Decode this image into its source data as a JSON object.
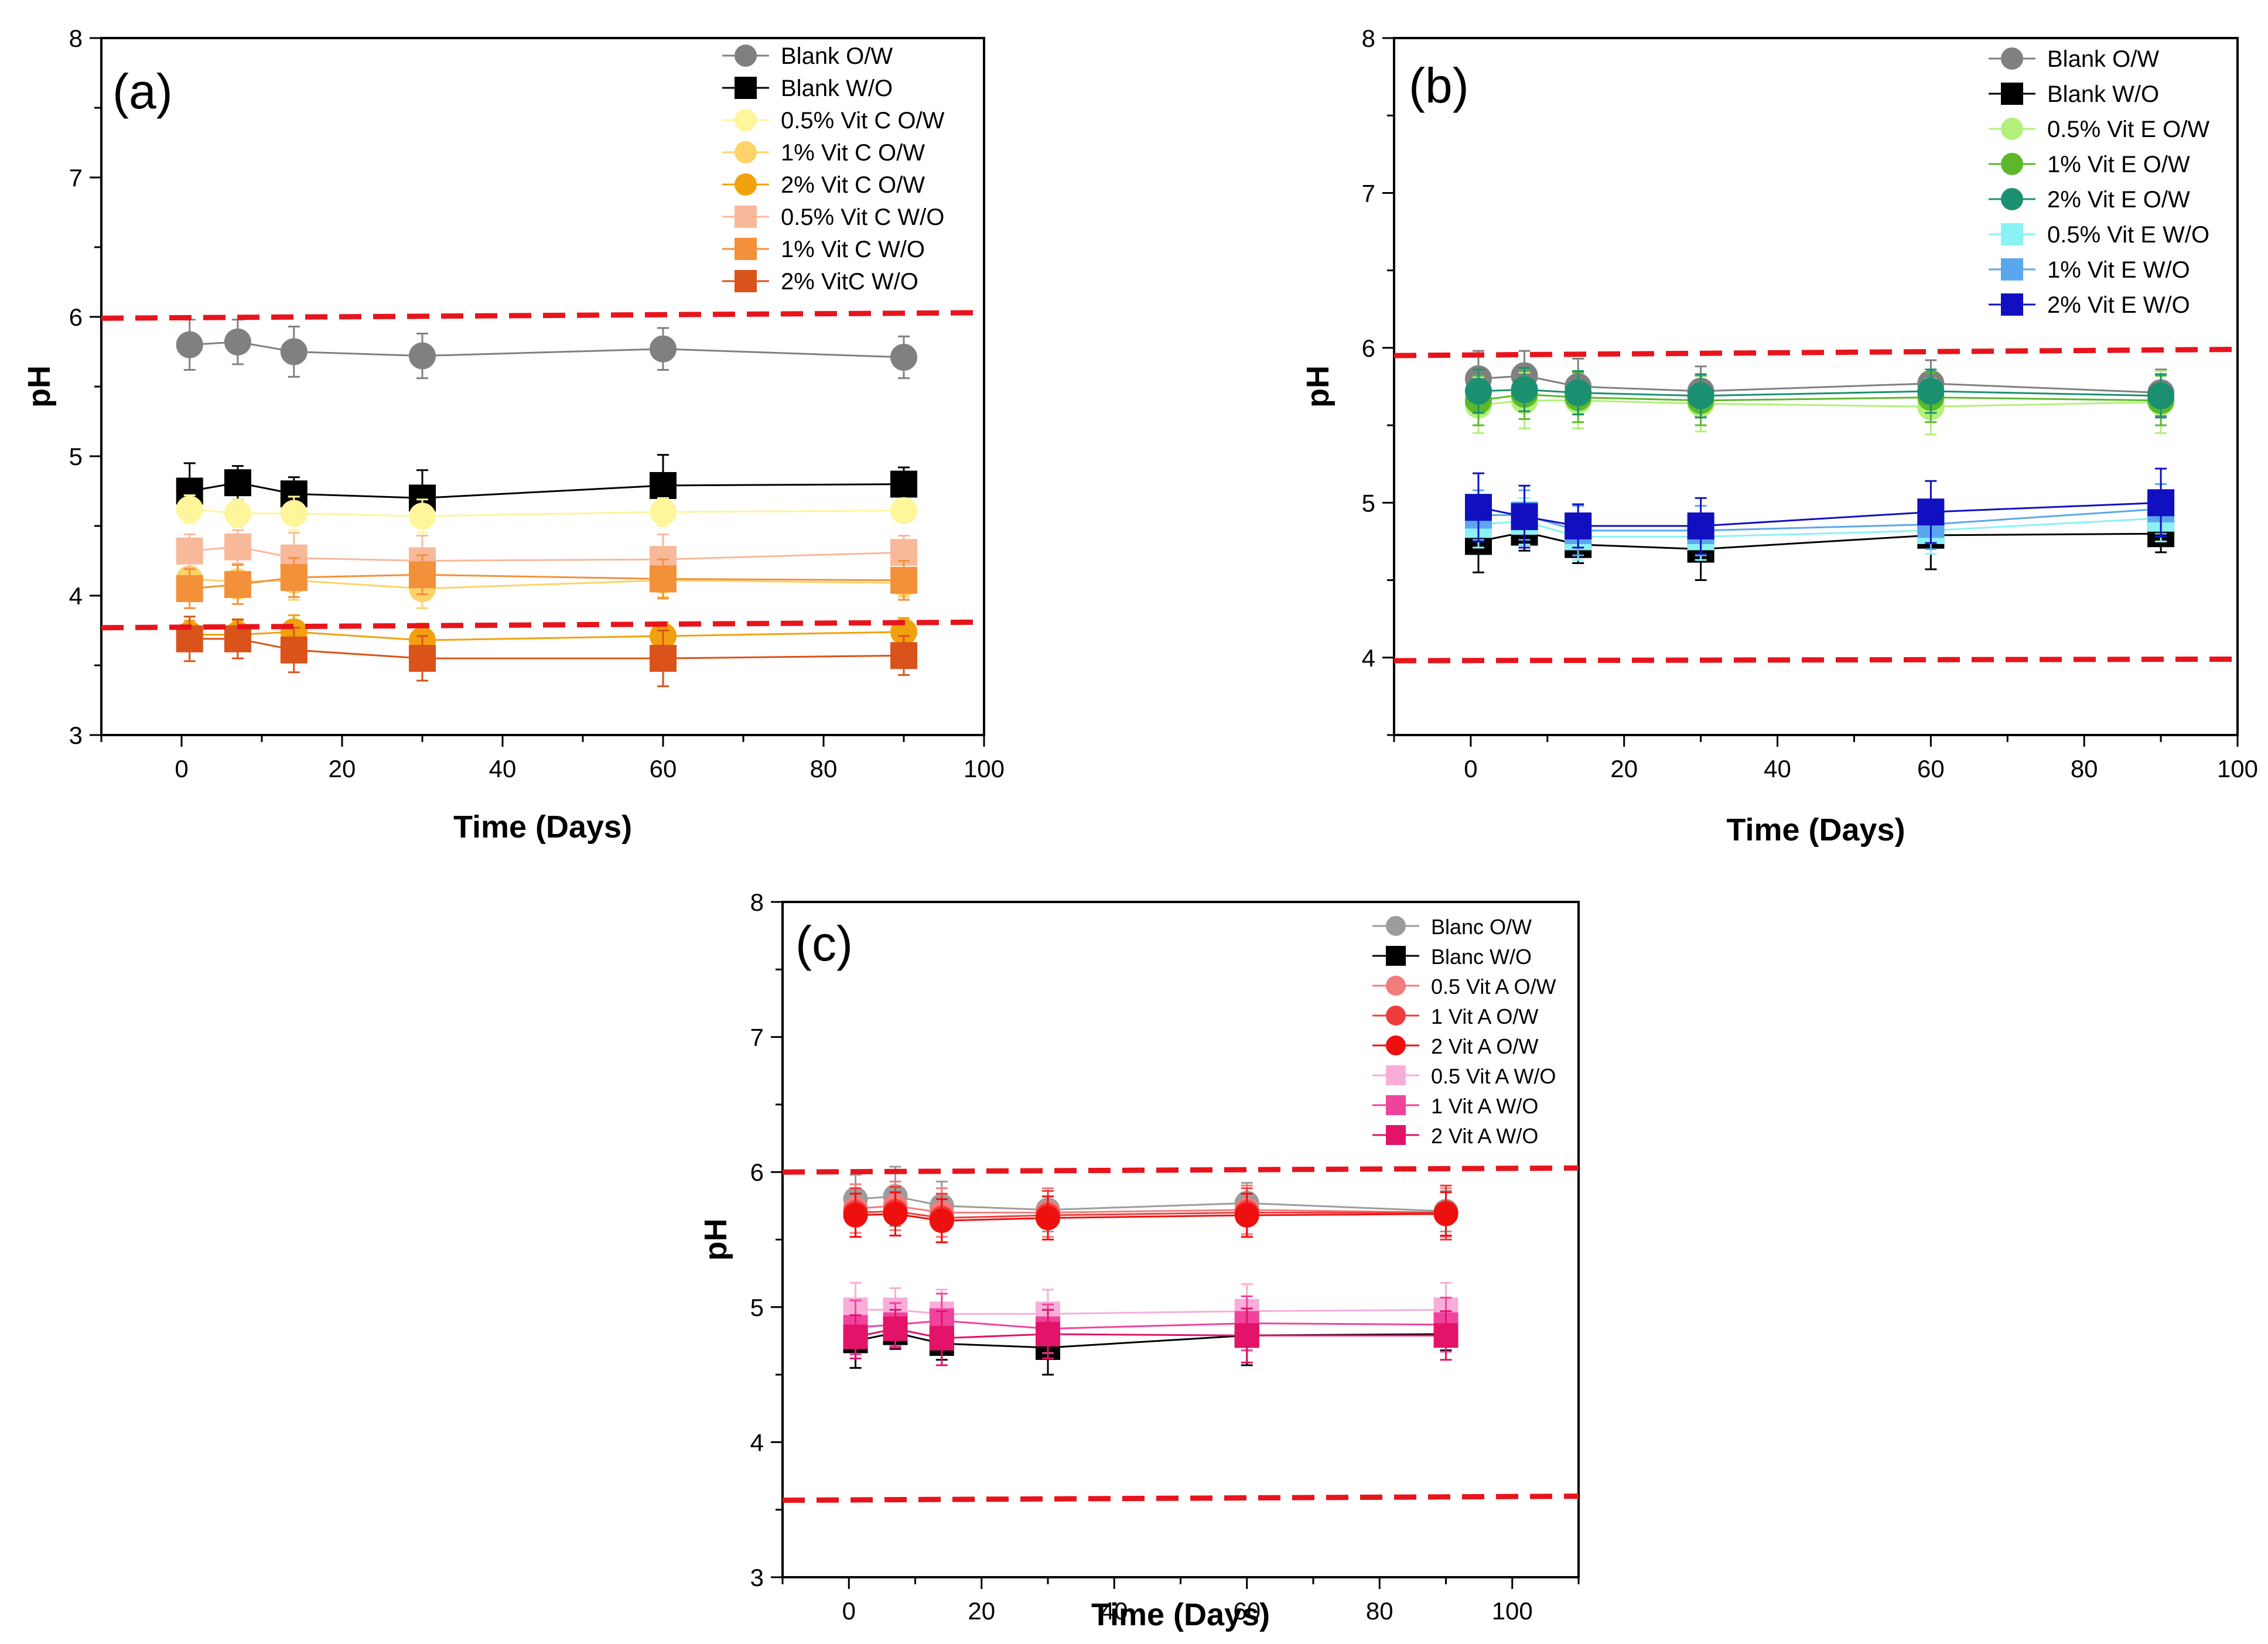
{
  "chart_data": [
    {
      "type": "line",
      "panel_label": "(a)",
      "xlabel": "Time (Days)",
      "ylabel": "pH",
      "xlim": [
        -10,
        100
      ],
      "ylim": [
        3,
        8
      ],
      "xticks": [
        "0",
        "20",
        "40",
        "60",
        "80",
        "100"
      ],
      "yticks": [
        "3",
        "4",
        "5",
        "6",
        "7",
        "8"
      ],
      "x": [
        1,
        7,
        14,
        30,
        60,
        90
      ],
      "limit_lines": [
        {
          "name": "upper-limit",
          "y_start": 5.99,
          "y_end": 6.03,
          "color": "#e8141c"
        },
        {
          "name": "lower-limit",
          "y_start": 3.77,
          "y_end": 3.81,
          "color": "#e8141c"
        }
      ],
      "series": [
        {
          "name": "Blank O/W",
          "marker": "circle",
          "color": "#808080",
          "values": [
            5.8,
            5.82,
            5.75,
            5.72,
            5.77,
            5.71
          ],
          "errors": [
            0.18,
            0.16,
            0.18,
            0.16,
            0.15,
            0.15
          ]
        },
        {
          "name": "Blank W/O",
          "marker": "square",
          "color": "#000000",
          "values": [
            4.75,
            4.81,
            4.73,
            4.7,
            4.79,
            4.8
          ],
          "errors": [
            0.2,
            0.12,
            0.12,
            0.2,
            0.22,
            0.12
          ]
        },
        {
          "name": "0.5% Vit C O/W",
          "marker": "circle",
          "color": "#fff59a",
          "values": [
            4.62,
            4.59,
            4.59,
            4.57,
            4.6,
            4.61
          ],
          "errors": [
            0.1,
            0.1,
            0.12,
            0.12,
            0.1,
            0.08
          ]
        },
        {
          "name": "1% Vit C O/W",
          "marker": "circle",
          "color": "#fdd36a",
          "values": [
            4.12,
            4.1,
            4.11,
            4.05,
            4.11,
            4.09
          ],
          "errors": [
            0.12,
            0.12,
            0.14,
            0.14,
            0.12,
            0.1
          ]
        },
        {
          "name": "2% Vit C O/W",
          "marker": "circle",
          "color": "#f2a10e",
          "values": [
            3.72,
            3.72,
            3.74,
            3.68,
            3.71,
            3.74
          ],
          "errors": [
            0.1,
            0.1,
            0.12,
            0.12,
            0.1,
            0.1
          ]
        },
        {
          "name": "0.5% Vit C W/O",
          "marker": "square",
          "color": "#f8b99a",
          "values": [
            4.32,
            4.35,
            4.27,
            4.25,
            4.26,
            4.31
          ],
          "errors": [
            0.12,
            0.12,
            0.18,
            0.18,
            0.18,
            0.12
          ]
        },
        {
          "name": "1% Vit C W/O",
          "marker": "square",
          "color": "#f3913a",
          "values": [
            4.05,
            4.08,
            4.13,
            4.15,
            4.12,
            4.11
          ],
          "errors": [
            0.14,
            0.14,
            0.14,
            0.14,
            0.14,
            0.14
          ]
        },
        {
          "name": "2% VitC W/O",
          "marker": "square",
          "color": "#d9531a",
          "values": [
            3.69,
            3.69,
            3.61,
            3.55,
            3.55,
            3.57
          ],
          "errors": [
            0.16,
            0.14,
            0.16,
            0.16,
            0.2,
            0.14
          ]
        }
      ]
    },
    {
      "type": "line",
      "panel_label": "(b)",
      "xlabel": "Time (Days)",
      "ylabel": "pH",
      "xlim": [
        -10,
        100
      ],
      "ylim": [
        3.5,
        8
      ],
      "xticks": [
        "0",
        "20",
        "40",
        "60",
        "80",
        "100"
      ],
      "yticks": [
        "4",
        "5",
        "6",
        "7",
        "8"
      ],
      "x": [
        1,
        7,
        14,
        30,
        60,
        90
      ],
      "limit_lines": [
        {
          "name": "upper-limit",
          "y_start": 5.95,
          "y_end": 5.99,
          "color": "#e8141c"
        },
        {
          "name": "lower-limit",
          "y_start": 3.98,
          "y_end": 3.99,
          "color": "#e8141c"
        }
      ],
      "series": [
        {
          "name": "Blank O/W",
          "marker": "circle",
          "color": "#808080",
          "values": [
            5.8,
            5.82,
            5.75,
            5.72,
            5.77,
            5.71
          ],
          "errors": [
            0.18,
            0.16,
            0.18,
            0.16,
            0.15,
            0.15
          ]
        },
        {
          "name": "Blank W/O",
          "marker": "square",
          "color": "#000000",
          "values": [
            4.75,
            4.81,
            4.73,
            4.7,
            4.79,
            4.8
          ],
          "errors": [
            0.2,
            0.12,
            0.12,
            0.2,
            0.22,
            0.12
          ]
        },
        {
          "name": "0.5% Vit E O/W",
          "marker": "circle",
          "color": "#b2f07a",
          "values": [
            5.63,
            5.66,
            5.66,
            5.64,
            5.62,
            5.65
          ],
          "errors": [
            0.18,
            0.18,
            0.18,
            0.18,
            0.18,
            0.2
          ]
        },
        {
          "name": "1% Vit E O/W",
          "marker": "circle",
          "color": "#5cb82a",
          "values": [
            5.66,
            5.7,
            5.68,
            5.66,
            5.68,
            5.66
          ],
          "errors": [
            0.16,
            0.16,
            0.16,
            0.16,
            0.16,
            0.16
          ]
        },
        {
          "name": "2% Vit E O/W",
          "marker": "circle",
          "color": "#1a9070",
          "values": [
            5.72,
            5.73,
            5.71,
            5.69,
            5.72,
            5.69
          ],
          "errors": [
            0.14,
            0.14,
            0.14,
            0.14,
            0.14,
            0.14
          ]
        },
        {
          "name": "0.5% Vit E W/O",
          "marker": "square",
          "color": "#8af2f5",
          "values": [
            4.86,
            4.88,
            4.78,
            4.78,
            4.82,
            4.9
          ],
          "errors": [
            0.15,
            0.15,
            0.15,
            0.15,
            0.15,
            0.15
          ]
        },
        {
          "name": "1% Vit E W/O",
          "marker": "square",
          "color": "#5aa7ef",
          "values": [
            4.92,
            4.92,
            4.82,
            4.82,
            4.86,
            4.96
          ],
          "errors": [
            0.16,
            0.16,
            0.16,
            0.16,
            0.16,
            0.16
          ]
        },
        {
          "name": "2% Vit E W/O",
          "marker": "square",
          "color": "#1010c0",
          "values": [
            4.97,
            4.91,
            4.85,
            4.85,
            4.94,
            5.0
          ],
          "errors": [
            0.22,
            0.2,
            0.14,
            0.18,
            0.2,
            0.22
          ]
        }
      ]
    },
    {
      "type": "line",
      "panel_label": "(c)",
      "xlabel": "Time (Days)",
      "ylabel": "pH",
      "xlim": [
        -10,
        110
      ],
      "ylim": [
        3,
        8
      ],
      "xticks": [
        "0",
        "20",
        "40",
        "60",
        "80",
        "100"
      ],
      "yticks": [
        "3",
        "4",
        "5",
        "6",
        "7",
        "8"
      ],
      "x": [
        1,
        7,
        14,
        30,
        60,
        90
      ],
      "limit_lines": [
        {
          "name": "upper-limit",
          "y_start": 6.0,
          "y_end": 6.03,
          "color": "#e8141c"
        },
        {
          "name": "lower-limit",
          "y_start": 3.57,
          "y_end": 3.6,
          "color": "#e8141c"
        }
      ],
      "series": [
        {
          "name": "Blanc O/W",
          "marker": "circle",
          "color": "#9c9c9c",
          "values": [
            5.8,
            5.82,
            5.75,
            5.72,
            5.77,
            5.71
          ],
          "errors": [
            0.18,
            0.22,
            0.18,
            0.16,
            0.15,
            0.15
          ]
        },
        {
          "name": "Blanc W/O",
          "marker": "square",
          "color": "#000000",
          "values": [
            4.75,
            4.81,
            4.73,
            4.7,
            4.79,
            4.8
          ],
          "errors": [
            0.2,
            0.12,
            0.12,
            0.2,
            0.22,
            0.12
          ]
        },
        {
          "name": "0.5 Vit A O/W",
          "marker": "circle",
          "color": "#f27b7b",
          "values": [
            5.73,
            5.75,
            5.7,
            5.7,
            5.72,
            5.7
          ],
          "errors": [
            0.18,
            0.18,
            0.18,
            0.18,
            0.18,
            0.18
          ]
        },
        {
          "name": "1 Vit A O/W",
          "marker": "circle",
          "color": "#ef3d3d",
          "values": [
            5.7,
            5.71,
            5.66,
            5.68,
            5.7,
            5.7
          ],
          "errors": [
            0.18,
            0.18,
            0.18,
            0.18,
            0.18,
            0.2
          ]
        },
        {
          "name": "2 Vit A O/W",
          "marker": "circle",
          "color": "#ee0f0f",
          "values": [
            5.68,
            5.69,
            5.64,
            5.66,
            5.68,
            5.69
          ],
          "errors": [
            0.16,
            0.16,
            0.16,
            0.16,
            0.16,
            0.16
          ]
        },
        {
          "name": "0.5 Vit A W/O",
          "marker": "square",
          "color": "#f8aed9",
          "values": [
            4.98,
            4.98,
            4.95,
            4.95,
            4.97,
            4.98
          ],
          "errors": [
            0.2,
            0.16,
            0.18,
            0.18,
            0.2,
            0.2
          ]
        },
        {
          "name": "1 Vit A W/O",
          "marker": "square",
          "color": "#f0439c",
          "values": [
            4.85,
            4.87,
            4.9,
            4.84,
            4.88,
            4.87
          ],
          "errors": [
            0.2,
            0.16,
            0.2,
            0.18,
            0.2,
            0.2
          ]
        },
        {
          "name": "2 Vit A W/O",
          "marker": "square",
          "color": "#e3136a",
          "values": [
            4.78,
            4.84,
            4.77,
            4.8,
            4.79,
            4.79
          ],
          "errors": [
            0.16,
            0.14,
            0.2,
            0.18,
            0.2,
            0.18
          ]
        }
      ]
    }
  ]
}
